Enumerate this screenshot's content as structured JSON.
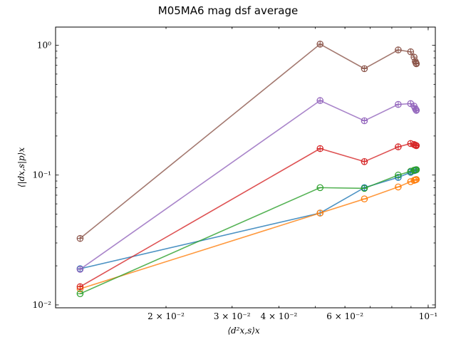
{
  "chart_data": {
    "type": "line",
    "title": "M05MA6 mag dsf average",
    "xlabel": "⟨d²x,s⟩x",
    "ylabel": "⟨|dx,s|p⟩x",
    "xscale": "log",
    "yscale": "log",
    "xlim": [
      0.01015,
      0.1045
    ],
    "ylim": [
      0.0095,
      1.38
    ],
    "grid": false,
    "legend": "none",
    "x_ticks": [
      {
        "value": 0.02,
        "label": "2 × 10⁻²"
      },
      {
        "value": 0.03,
        "label": "3 × 10⁻²"
      },
      {
        "value": 0.04,
        "label": "4 × 10⁻²"
      },
      {
        "value": 0.06,
        "label": "6 × 10⁻²"
      },
      {
        "value": 0.1,
        "label": "10⁻¹"
      }
    ],
    "y_ticks": [
      {
        "value": 0.01,
        "label": "10⁻²"
      },
      {
        "value": 0.1,
        "label": "10⁻¹"
      },
      {
        "value": 1,
        "label": "10⁰"
      }
    ],
    "x": [
      0.0118,
      0.0515,
      0.0676,
      0.0832,
      0.0898,
      0.0917,
      0.0924,
      0.0928,
      0.093
    ],
    "series": [
      {
        "color": "#1f77b4",
        "marker": "plus-circle",
        "values": [
          0.019,
          0.051,
          0.08,
          0.096,
          0.105,
          0.108,
          0.109,
          0.1095,
          0.11
        ]
      },
      {
        "color": "#ff7f0e",
        "marker": "circle",
        "values": [
          0.0133,
          0.051,
          0.0655,
          0.081,
          0.089,
          0.091,
          0.0918,
          0.0922,
          0.0925
        ]
      },
      {
        "color": "#2ca02c",
        "marker": "circle",
        "values": [
          0.0122,
          0.08,
          0.079,
          0.1,
          0.107,
          0.109,
          0.1095,
          0.1098,
          0.11
        ]
      },
      {
        "color": "#d62728",
        "marker": "plus-circle",
        "values": [
          0.0138,
          0.16,
          0.127,
          0.165,
          0.175,
          0.172,
          0.17,
          0.169,
          0.1685
        ]
      },
      {
        "color": "#9467bd",
        "marker": "plus-circle",
        "values": [
          0.0188,
          0.375,
          0.262,
          0.35,
          0.355,
          0.34,
          0.325,
          0.318,
          0.315
        ]
      },
      {
        "color": "#8c564b",
        "marker": "plus-circle",
        "values": [
          0.0325,
          1.02,
          0.66,
          0.92,
          0.89,
          0.81,
          0.75,
          0.73,
          0.72
        ]
      }
    ]
  }
}
